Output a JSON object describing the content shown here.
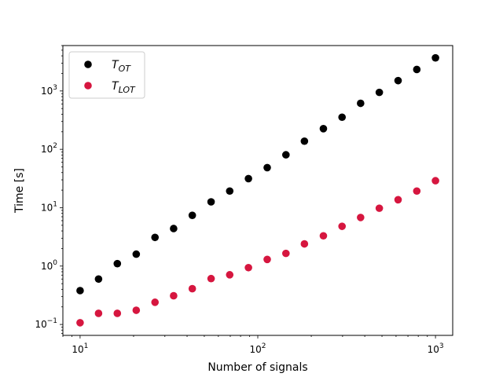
{
  "chart_data": {
    "type": "scatter",
    "title": "",
    "xlabel": "Number of signals",
    "ylabel": "Time [s]",
    "xscale": "log",
    "yscale": "log",
    "xlim": [
      8.0,
      1250
    ],
    "ylim": [
      0.065,
      6000
    ],
    "grid": false,
    "legend_position": "top-left",
    "x_ticks": [
      {
        "value": 10,
        "base": "10",
        "exp": "1"
      },
      {
        "value": 100,
        "base": "10",
        "exp": "2"
      },
      {
        "value": 1000,
        "base": "10",
        "exp": "3"
      }
    ],
    "y_ticks": [
      {
        "value": 0.1,
        "base": "10",
        "exp": "−1"
      },
      {
        "value": 1,
        "base": "10",
        "exp": "0"
      },
      {
        "value": 10,
        "base": "10",
        "exp": "1"
      },
      {
        "value": 100,
        "base": "10",
        "exp": "2"
      },
      {
        "value": 1000,
        "base": "10",
        "exp": "3"
      }
    ],
    "x": [
      10,
      12.7,
      16.2,
      20.7,
      26.4,
      33.6,
      42.8,
      54.6,
      69.5,
      88.6,
      113,
      144,
      183,
      234,
      298,
      379,
      483,
      616,
      785,
      1000
    ],
    "series": [
      {
        "name": "T",
        "subscript": "OT",
        "color": "#000000",
        "values": [
          0.38,
          0.6,
          1.1,
          1.6,
          3.1,
          4.4,
          7.4,
          12.6,
          19.3,
          31.5,
          48.6,
          80.6,
          138,
          226,
          355,
          615,
          946,
          1504,
          2336,
          3692
        ]
      },
      {
        "name": "T",
        "subscript": "LOT",
        "color": "#d6163f",
        "values": [
          0.107,
          0.155,
          0.155,
          0.175,
          0.24,
          0.31,
          0.41,
          0.61,
          0.71,
          0.94,
          1.3,
          1.65,
          2.4,
          3.3,
          4.8,
          6.8,
          9.8,
          13.7,
          19.3,
          29
        ]
      }
    ]
  }
}
